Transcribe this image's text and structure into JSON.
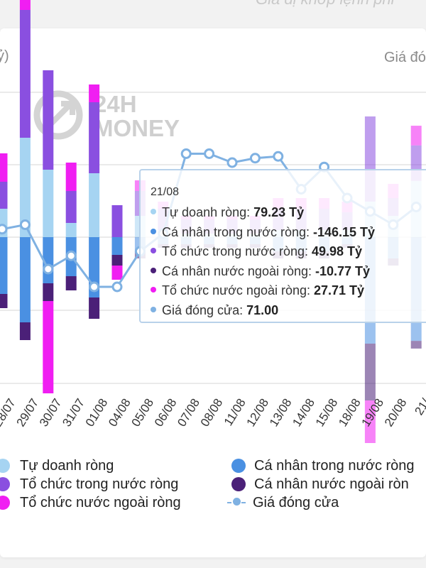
{
  "header": {
    "caption": "Giá đị khớp lệnh phi",
    "left_axis_title": "ỷ)",
    "right_axis_title": "Giá đóng"
  },
  "watermark": {
    "text_top": "24H",
    "text_bottom": "MONEY"
  },
  "colors": {
    "tu_doanh": "#a6d4f2",
    "ca_nhan_trong_nuoc": "#4a90e2",
    "to_chuc_trong_nuoc": "#8a4fe0",
    "ca_nhan_nuoc_ngoai": "#4b2078",
    "to_chuc_nuoc_ngoai": "#f01ef2",
    "gia_dong_cua": "#7fb1e2"
  },
  "chart_data": {
    "type": "bar",
    "stacked": true,
    "categories": [
      "28/07",
      "29/07",
      "30/07",
      "31/07",
      "01/08",
      "04/08",
      "05/08",
      "06/08",
      "07/08",
      "08/08",
      "11/08",
      "12/08",
      "13/08",
      "14/08",
      "15/08",
      "18/08",
      "19/08",
      "20/08",
      "21/08"
    ],
    "tick_labels_visible": [
      "/07",
      "28/07",
      "29/07",
      "30/07",
      "31/07",
      "01/08",
      "04/08",
      "05/08",
      "06/08",
      "07/08",
      "08/08",
      "11/08",
      "12/08",
      "13/08",
      "14/08",
      "15/08",
      "18/08",
      "19/08",
      "20/08",
      "21/"
    ],
    "series": [
      {
        "name": "Tự doanh ròng",
        "values": [
          40,
          140,
          95,
          20,
          90,
          0,
          30,
          10,
          5,
          5,
          5,
          5,
          10,
          10,
          10,
          10,
          50,
          30,
          79.23
        ]
      },
      {
        "name": "Cá nhân trong nước ròng",
        "values": [
          -80,
          -120,
          -65,
          -55,
          -85,
          -25,
          -20,
          -10,
          -10,
          -10,
          -10,
          -10,
          -20,
          -20,
          -20,
          -10,
          -150,
          -30,
          -146.15
        ]
      },
      {
        "name": "Tổ chức trong nước ròng",
        "values": [
          38,
          180,
          140,
          45,
          100,
          45,
          35,
          30,
          20,
          20,
          20,
          20,
          30,
          30,
          30,
          25,
          120,
          25,
          49.98
        ]
      },
      {
        "name": "Cá nhân nước ngoài ròng",
        "values": [
          -20,
          -25,
          -25,
          -20,
          -30,
          -15,
          -10,
          -5,
          -5,
          -5,
          -5,
          -5,
          -10,
          -10,
          -10,
          -5,
          -80,
          -10,
          -10.77
        ]
      },
      {
        "name": "Tổ chức nước ngoài ròng",
        "values": [
          40,
          30,
          -130,
          40,
          25,
          -20,
          15,
          10,
          5,
          5,
          5,
          5,
          15,
          15,
          15,
          15,
          -60,
          20,
          27.71
        ]
      },
      {
        "name": "Giá đóng cửa",
        "values": [
          68.5,
          69.0,
          64.0,
          65.5,
          62.0,
          62.0,
          66.0,
          68.0,
          77.0,
          77.0,
          76.0,
          76.5,
          76.7,
          73.0,
          75.5,
          72.0,
          70.5,
          69.0,
          71.0
        ]
      }
    ],
    "legend": "bottom"
  },
  "tooltip": {
    "date": "21/08",
    "rows": [
      {
        "label": "Tự doanh ròng: ",
        "value": "79.23 Tỷ"
      },
      {
        "label": "Cá nhân trong nước ròng: ",
        "value": "-146.15 Tỷ"
      },
      {
        "label": "Tổ chức trong nước ròng: ",
        "value": "49.98 Tỷ"
      },
      {
        "label": "Cá nhân nước ngoài ròng: ",
        "value": "-10.77 Tỷ"
      },
      {
        "label": "Tổ chức nước ngoài ròng: ",
        "value": "27.71 Tỷ"
      },
      {
        "label": "Giá đóng cửa: ",
        "value": "71.00"
      }
    ]
  },
  "legend": {
    "items": [
      "Tự doanh ròng",
      "Cá nhân trong nước ròng",
      "Tổ chức trong nước ròng",
      "Cá nhân nước ngoài ròn",
      "Tổ chức nước ngoài ròng",
      "Giá đóng cửa"
    ]
  }
}
